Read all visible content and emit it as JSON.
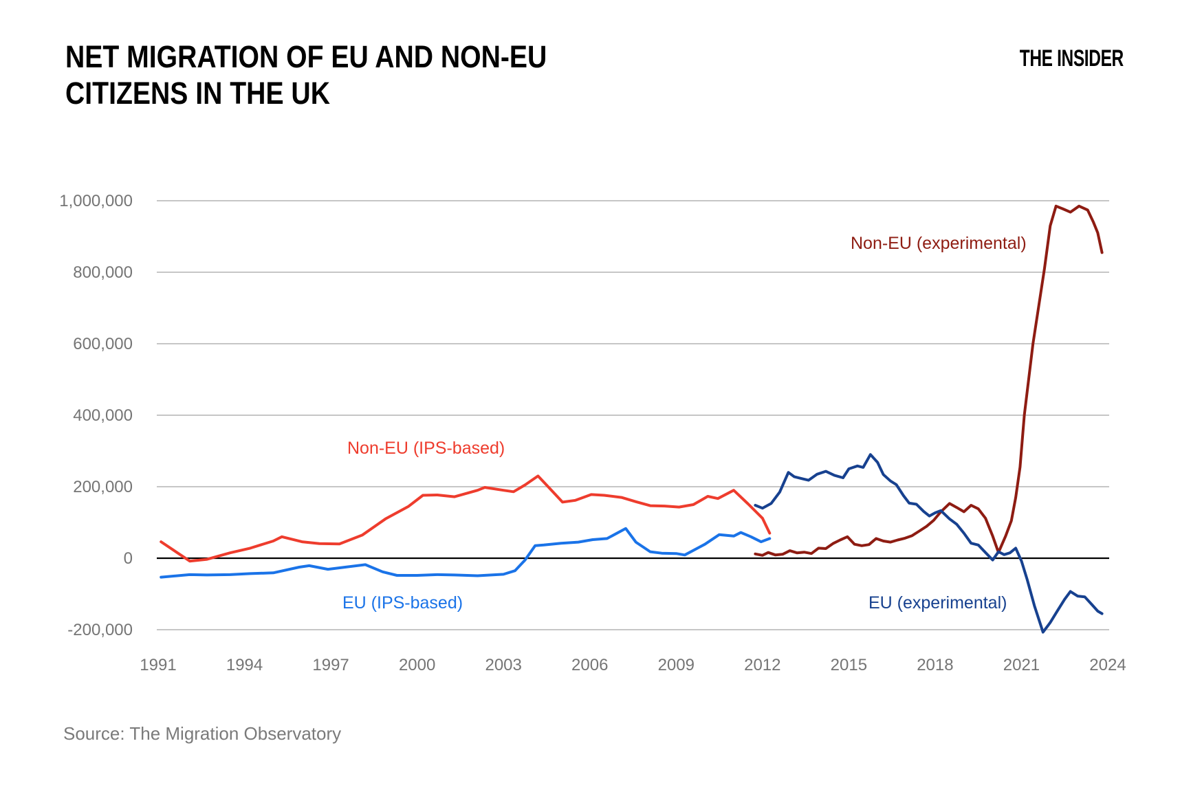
{
  "page": {
    "title_line1": "NET MIGRATION OF EU AND NON-EU",
    "title_line2": "CITIZENS IN THE UK",
    "brand": "THE INSIDER",
    "source": "Source: The Migration Observatory"
  },
  "colors": {
    "gridline": "#b3b3b3",
    "zero_line": "#000000",
    "tick_text": "#757575",
    "title_text": "#000000",
    "source_text": "#7a7a7a"
  },
  "chart_data": {
    "type": "line",
    "title": "NET MIGRATION OF EU AND NON-EU CITIZENS IN THE UK",
    "x_axis": {
      "min": 1991,
      "max": 2024,
      "tick_years": [
        1991,
        1994,
        1997,
        2000,
        2003,
        2006,
        2009,
        2012,
        2015,
        2018,
        2021,
        2024
      ]
    },
    "y_axis": {
      "min": -200000,
      "max": 1000000,
      "tick_step": 200000,
      "grid": true,
      "ticks": [
        {
          "value": 1000000,
          "label": "1,000,000"
        },
        {
          "value": 800000,
          "label": "800,000"
        },
        {
          "value": 600000,
          "label": "600,000"
        },
        {
          "value": 400000,
          "label": "400,000"
        },
        {
          "value": 200000,
          "label": "200,000"
        },
        {
          "value": 0,
          "label": "0"
        },
        {
          "value": -200000,
          "label": "-200,000"
        }
      ]
    },
    "legend_position": "inline-labels",
    "series": [
      {
        "id": "non_eu_ips",
        "label": "Non-EU (IPS-based)",
        "color": "#ee3c2d",
        "points": [
          [
            1991.1,
            46000
          ],
          [
            1992.1,
            -8000
          ],
          [
            1992.7,
            -3000
          ],
          [
            1993.5,
            15000
          ],
          [
            1994.2,
            28000
          ],
          [
            1995.0,
            48000
          ],
          [
            1995.3,
            60000
          ],
          [
            1996.0,
            46000
          ],
          [
            1996.6,
            41000
          ],
          [
            1997.3,
            40000
          ],
          [
            1998.1,
            65000
          ],
          [
            1998.9,
            110000
          ],
          [
            1999.7,
            145000
          ],
          [
            2000.2,
            176000
          ],
          [
            2000.7,
            177000
          ],
          [
            2001.3,
            172000
          ],
          [
            2002.1,
            190000
          ],
          [
            2002.35,
            198000
          ],
          [
            2003.0,
            190000
          ],
          [
            2003.35,
            186000
          ],
          [
            2003.75,
            205000
          ],
          [
            2004.2,
            230000
          ],
          [
            2004.6,
            196000
          ],
          [
            2005.05,
            157000
          ],
          [
            2005.5,
            162000
          ],
          [
            2006.05,
            178000
          ],
          [
            2006.5,
            176000
          ],
          [
            2007.1,
            170000
          ],
          [
            2007.6,
            158000
          ],
          [
            2008.1,
            147000
          ],
          [
            2008.6,
            146000
          ],
          [
            2009.1,
            143000
          ],
          [
            2009.6,
            150000
          ],
          [
            2010.1,
            173000
          ],
          [
            2010.45,
            167000
          ],
          [
            2011.0,
            190000
          ],
          [
            2011.5,
            152000
          ],
          [
            2012.0,
            112000
          ],
          [
            2012.25,
            70000
          ]
        ]
      },
      {
        "id": "eu_ips",
        "label": "EU (IPS-based)",
        "color": "#1a73e8",
        "points": [
          [
            1991.1,
            -53000
          ],
          [
            1992.1,
            -46000
          ],
          [
            1992.7,
            -47000
          ],
          [
            1993.5,
            -46000
          ],
          [
            1994.2,
            -43000
          ],
          [
            1995.0,
            -41000
          ],
          [
            1995.9,
            -25000
          ],
          [
            1996.25,
            -21000
          ],
          [
            1996.9,
            -31000
          ],
          [
            1997.5,
            -25000
          ],
          [
            1998.2,
            -18000
          ],
          [
            1998.8,
            -38000
          ],
          [
            1999.3,
            -48000
          ],
          [
            2000.0,
            -48000
          ],
          [
            2000.7,
            -46000
          ],
          [
            2001.3,
            -47000
          ],
          [
            2002.1,
            -49000
          ],
          [
            2003.0,
            -45000
          ],
          [
            2003.4,
            -35000
          ],
          [
            2003.75,
            -5000
          ],
          [
            2004.1,
            35000
          ],
          [
            2004.4,
            37000
          ],
          [
            2005.0,
            42000
          ],
          [
            2005.6,
            45000
          ],
          [
            2006.1,
            52000
          ],
          [
            2006.6,
            55000
          ],
          [
            2007.25,
            83000
          ],
          [
            2007.6,
            45000
          ],
          [
            2008.1,
            18000
          ],
          [
            2008.5,
            14000
          ],
          [
            2009.0,
            13000
          ],
          [
            2009.3,
            9000
          ],
          [
            2010.0,
            39000
          ],
          [
            2010.5,
            66000
          ],
          [
            2011.0,
            62000
          ],
          [
            2011.25,
            72000
          ],
          [
            2011.6,
            60000
          ],
          [
            2011.95,
            46000
          ],
          [
            2012.25,
            55000
          ]
        ]
      },
      {
        "id": "non_eu_experimental",
        "label": "Non-EU (experimental)",
        "color": "#8e1c12",
        "points": [
          [
            2011.75,
            12000
          ],
          [
            2012.0,
            8000
          ],
          [
            2012.2,
            16000
          ],
          [
            2012.45,
            9000
          ],
          [
            2012.7,
            11000
          ],
          [
            2012.95,
            21000
          ],
          [
            2013.2,
            15000
          ],
          [
            2013.45,
            17000
          ],
          [
            2013.7,
            13000
          ],
          [
            2013.95,
            28000
          ],
          [
            2014.2,
            27000
          ],
          [
            2014.45,
            41000
          ],
          [
            2014.7,
            51000
          ],
          [
            2014.95,
            60000
          ],
          [
            2015.2,
            39000
          ],
          [
            2015.45,
            35000
          ],
          [
            2015.7,
            38000
          ],
          [
            2015.95,
            55000
          ],
          [
            2016.2,
            48000
          ],
          [
            2016.45,
            45000
          ],
          [
            2016.7,
            51000
          ],
          [
            2016.95,
            56000
          ],
          [
            2017.2,
            63000
          ],
          [
            2017.45,
            76000
          ],
          [
            2017.7,
            89000
          ],
          [
            2017.95,
            106000
          ],
          [
            2018.2,
            130000
          ],
          [
            2018.5,
            153000
          ],
          [
            2018.75,
            142000
          ],
          [
            2019.0,
            130000
          ],
          [
            2019.25,
            148000
          ],
          [
            2019.5,
            138000
          ],
          [
            2019.75,
            112000
          ],
          [
            2020.0,
            62000
          ],
          [
            2020.2,
            16000
          ],
          [
            2020.45,
            62000
          ],
          [
            2020.65,
            105000
          ],
          [
            2020.8,
            170000
          ],
          [
            2020.95,
            255000
          ],
          [
            2021.1,
            400000
          ],
          [
            2021.4,
            600000
          ],
          [
            2021.8,
            810000
          ],
          [
            2022.0,
            930000
          ],
          [
            2022.2,
            985000
          ],
          [
            2022.45,
            977000
          ],
          [
            2022.7,
            968000
          ],
          [
            2023.0,
            985000
          ],
          [
            2023.3,
            974000
          ],
          [
            2023.5,
            940000
          ],
          [
            2023.65,
            910000
          ],
          [
            2023.8,
            855000
          ]
        ]
      },
      {
        "id": "eu_experimental",
        "label": "EU (experimental)",
        "color": "#17418f",
        "points": [
          [
            2011.75,
            148000
          ],
          [
            2012.0,
            140000
          ],
          [
            2012.3,
            153000
          ],
          [
            2012.6,
            185000
          ],
          [
            2012.9,
            240000
          ],
          [
            2013.1,
            228000
          ],
          [
            2013.4,
            222000
          ],
          [
            2013.6,
            218000
          ],
          [
            2013.9,
            235000
          ],
          [
            2014.2,
            243000
          ],
          [
            2014.5,
            232000
          ],
          [
            2014.8,
            225000
          ],
          [
            2015.0,
            250000
          ],
          [
            2015.3,
            258000
          ],
          [
            2015.5,
            254000
          ],
          [
            2015.75,
            290000
          ],
          [
            2016.0,
            268000
          ],
          [
            2016.2,
            234000
          ],
          [
            2016.45,
            216000
          ],
          [
            2016.65,
            206000
          ],
          [
            2016.9,
            175000
          ],
          [
            2017.1,
            154000
          ],
          [
            2017.35,
            151000
          ],
          [
            2017.6,
            131000
          ],
          [
            2017.8,
            118000
          ],
          [
            2018.0,
            127000
          ],
          [
            2018.2,
            133000
          ],
          [
            2018.5,
            110000
          ],
          [
            2018.75,
            95000
          ],
          [
            2019.0,
            70000
          ],
          [
            2019.25,
            42000
          ],
          [
            2019.5,
            37000
          ],
          [
            2019.75,
            16000
          ],
          [
            2020.0,
            -5000
          ],
          [
            2020.2,
            18000
          ],
          [
            2020.4,
            10000
          ],
          [
            2020.6,
            15000
          ],
          [
            2020.8,
            28000
          ],
          [
            2021.0,
            -8000
          ],
          [
            2021.2,
            -60000
          ],
          [
            2021.45,
            -133000
          ],
          [
            2021.75,
            -207000
          ],
          [
            2022.0,
            -180000
          ],
          [
            2022.25,
            -147000
          ],
          [
            2022.5,
            -115000
          ],
          [
            2022.7,
            -93000
          ],
          [
            2022.95,
            -106000
          ],
          [
            2023.2,
            -108000
          ],
          [
            2023.45,
            -130000
          ],
          [
            2023.65,
            -148000
          ],
          [
            2023.8,
            -155000
          ]
        ]
      }
    ]
  }
}
